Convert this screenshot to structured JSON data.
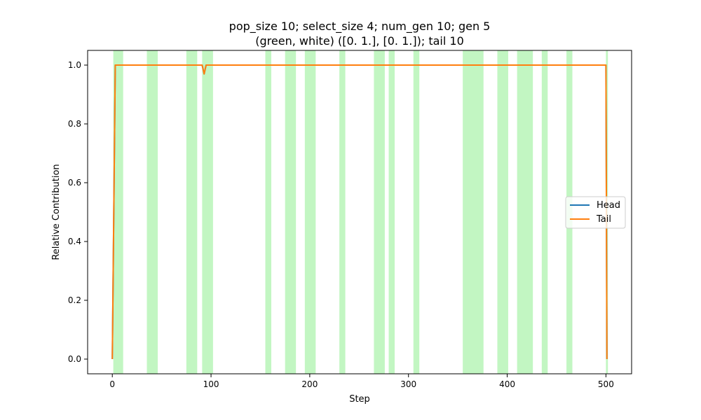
{
  "chart_data": {
    "type": "line",
    "title_line1": "pop_size 10; select_size 4; num_gen 10; gen 5",
    "title_line2": "(green, white) ([0. 1.], [0. 1.]); tail 10",
    "xlabel": "Step",
    "ylabel": "Relative Contribution",
    "xlim": [
      -25,
      526
    ],
    "ylim": [
      -0.05,
      1.05
    ],
    "xticks": [
      0,
      100,
      200,
      300,
      400,
      500
    ],
    "yticks": [
      "0.0",
      "0.2",
      "0.4",
      "0.6",
      "0.8",
      "1.0"
    ],
    "ytick_values": [
      0.0,
      0.2,
      0.4,
      0.6,
      0.8,
      1.0
    ],
    "legend": {
      "position": "center-right",
      "entries": [
        "Head",
        "Tail"
      ]
    },
    "highlight_color": "#90ee90",
    "highlight_spans": [
      [
        1,
        11
      ],
      [
        35,
        46
      ],
      [
        75,
        86
      ],
      [
        91,
        102
      ],
      [
        155,
        161
      ],
      [
        175,
        186
      ],
      [
        195,
        206
      ],
      [
        230,
        236
      ],
      [
        265,
        276
      ],
      [
        280,
        286
      ],
      [
        305,
        311
      ],
      [
        355,
        376
      ],
      [
        390,
        401
      ],
      [
        410,
        426
      ],
      [
        435,
        441
      ],
      [
        460,
        466
      ],
      [
        500,
        502
      ]
    ],
    "series": [
      {
        "name": "Head",
        "color": "#1f77b4",
        "x": [
          0,
          3,
          91,
          93,
          95,
          500,
          501
        ],
        "y": [
          0.0,
          1.0,
          1.0,
          0.97,
          1.0,
          1.0,
          0.0
        ]
      },
      {
        "name": "Tail",
        "color": "#ff7f0e",
        "x": [
          0,
          3,
          91,
          93,
          95,
          500,
          501
        ],
        "y": [
          0.0,
          1.0,
          1.0,
          0.97,
          1.0,
          1.0,
          0.0
        ]
      }
    ]
  }
}
